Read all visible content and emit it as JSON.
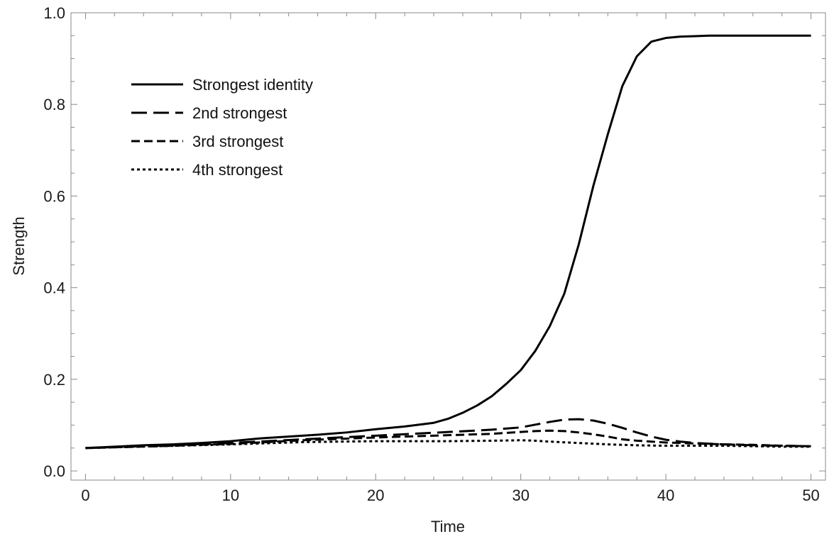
{
  "chart_data": {
    "type": "line",
    "title": "",
    "xlabel": "Time",
    "ylabel": "Strength",
    "xlim": [
      -1,
      51
    ],
    "ylim": [
      -0.02,
      1.0
    ],
    "xticks": [
      0,
      10,
      20,
      30,
      40,
      50
    ],
    "xtick_labels": [
      "0",
      "10",
      "20",
      "30",
      "40",
      "50"
    ],
    "yticks": [
      0.0,
      0.2,
      0.4,
      0.6,
      0.8,
      1.0
    ],
    "ytick_labels": [
      "0.0",
      "0.2",
      "0.4",
      "0.6",
      "0.8",
      "1.0"
    ],
    "grid": false,
    "legend_position": "top-left",
    "series": [
      {
        "name": "Strongest identity",
        "x": [
          0,
          2,
          4,
          6,
          8,
          10,
          12,
          14,
          16,
          18,
          20,
          22,
          24,
          25,
          26,
          27,
          28,
          29,
          30,
          31,
          32,
          33,
          34,
          35,
          36,
          37,
          38,
          39,
          40,
          41,
          42,
          43,
          44,
          46,
          48,
          50
        ],
        "y": [
          0.05,
          0.053,
          0.056,
          0.058,
          0.061,
          0.065,
          0.071,
          0.075,
          0.079,
          0.084,
          0.091,
          0.097,
          0.105,
          0.114,
          0.127,
          0.143,
          0.163,
          0.19,
          0.22,
          0.262,
          0.316,
          0.387,
          0.495,
          0.622,
          0.735,
          0.84,
          0.905,
          0.937,
          0.945,
          0.948,
          0.949,
          0.95,
          0.95,
          0.95,
          0.95,
          0.95
        ],
        "color": "#000000",
        "dash": "solid"
      },
      {
        "name": "2nd strongest",
        "x": [
          0,
          5,
          10,
          15,
          20,
          25,
          28,
          30,
          31,
          32,
          33,
          34,
          35,
          36,
          37,
          38,
          39,
          40,
          41,
          42,
          44,
          46,
          48,
          50
        ],
        "y": [
          0.05,
          0.055,
          0.061,
          0.069,
          0.077,
          0.085,
          0.09,
          0.095,
          0.101,
          0.107,
          0.112,
          0.113,
          0.11,
          0.103,
          0.094,
          0.084,
          0.075,
          0.068,
          0.064,
          0.061,
          0.058,
          0.056,
          0.055,
          0.054
        ],
        "color": "#000000",
        "dash": "long-dash"
      },
      {
        "name": "3rd strongest",
        "x": [
          0,
          5,
          10,
          15,
          20,
          25,
          28,
          30,
          31,
          32,
          33,
          34,
          35,
          36,
          37,
          38,
          39,
          40,
          42,
          44,
          46,
          48,
          50
        ],
        "y": [
          0.05,
          0.054,
          0.059,
          0.067,
          0.073,
          0.078,
          0.081,
          0.085,
          0.087,
          0.088,
          0.087,
          0.084,
          0.08,
          0.075,
          0.069,
          0.066,
          0.064,
          0.062,
          0.06,
          0.058,
          0.057,
          0.055,
          0.054
        ],
        "color": "#000000",
        "dash": "dash"
      },
      {
        "name": "4th strongest",
        "x": [
          0,
          5,
          10,
          15,
          20,
          25,
          28,
          30,
          31,
          32,
          34,
          36,
          38,
          40,
          42,
          44,
          46,
          48,
          50
        ],
        "y": [
          0.05,
          0.054,
          0.058,
          0.063,
          0.065,
          0.065,
          0.066,
          0.067,
          0.066,
          0.064,
          0.061,
          0.058,
          0.056,
          0.055,
          0.055,
          0.055,
          0.054,
          0.053,
          0.053
        ],
        "color": "#000000",
        "dash": "dot"
      }
    ]
  }
}
